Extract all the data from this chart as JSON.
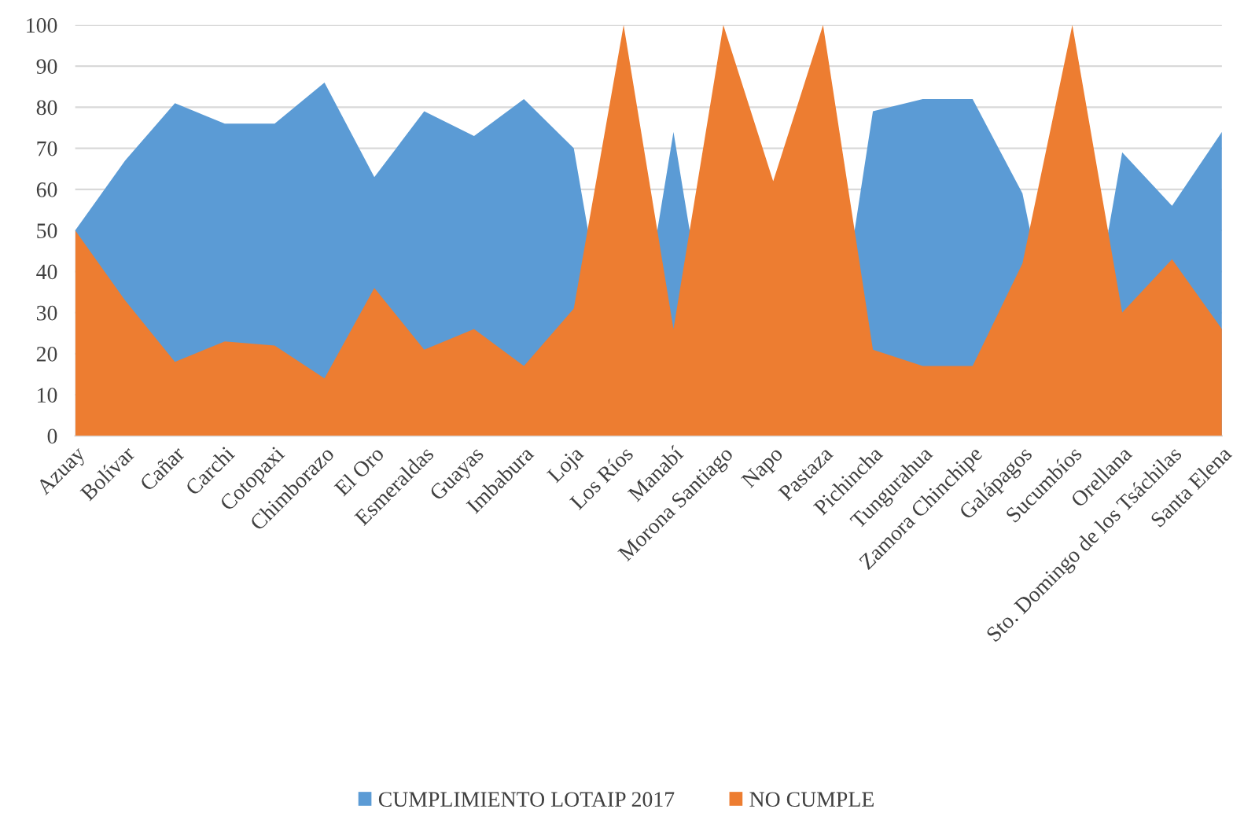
{
  "chart_data": {
    "type": "area",
    "categories": [
      "Azuay",
      "Bolívar",
      "Cañar",
      "Carchi",
      "Cotopaxi",
      "Chimborazo",
      "El Oro",
      "Esmeraldas",
      "Guayas",
      "Imbabura",
      "Loja",
      "Los Ríos",
      "Manabí",
      "Morona Santiago",
      "Napo",
      "Pastaza",
      "Pichincha",
      "Tungurahua",
      "Zamora Chinchipe",
      "Galápagos",
      "Sucumbíos",
      "Orellana",
      "Sto. Domingo de los Tsáchilas",
      "Santa Elena"
    ],
    "series": [
      {
        "name": "CUMPLIMIENTO LOTAIP 2017",
        "color": "#5b9bd5",
        "values": [
          50,
          67,
          81,
          76,
          76,
          86,
          63,
          79,
          73,
          82,
          70,
          0,
          74,
          0,
          null,
          0,
          79,
          82,
          82,
          59,
          0,
          69,
          56,
          74
        ]
      },
      {
        "name": "NO CUMPLE",
        "color": "#ed7d31",
        "values": [
          50,
          33,
          18,
          23,
          22,
          14,
          36,
          21,
          26,
          17,
          31,
          100,
          26,
          100,
          62,
          100,
          21,
          17,
          17,
          42,
          100,
          30,
          43,
          26
        ]
      }
    ],
    "ylim": [
      0,
      100
    ],
    "yticks": [
      0,
      10,
      20,
      30,
      40,
      50,
      60,
      70,
      80,
      90,
      100
    ],
    "grid": "y",
    "legend": "bottom"
  }
}
